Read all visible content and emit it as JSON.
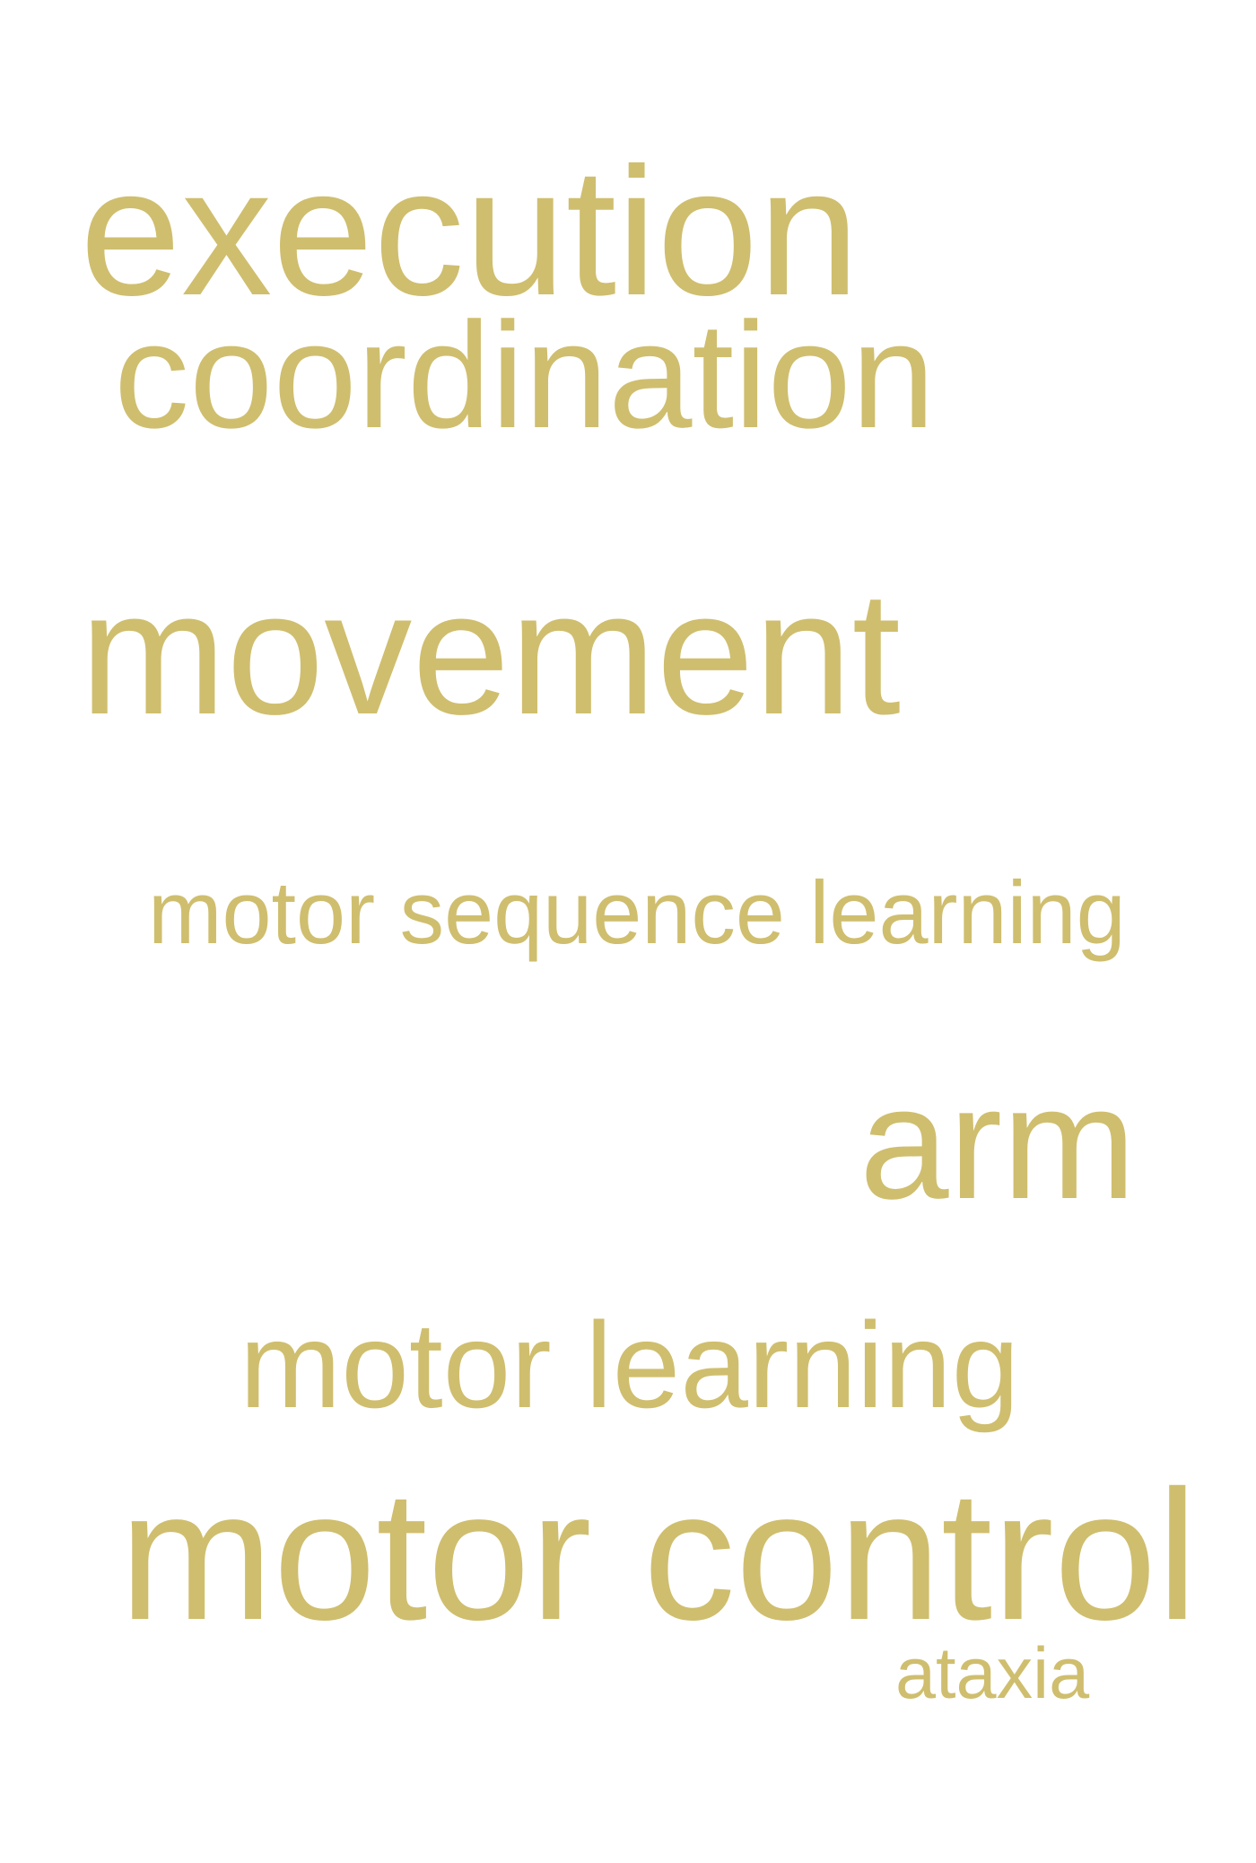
{
  "word_cloud": {
    "color": "#cfbe6e",
    "words": [
      {
        "id": "execution",
        "text": "execution"
      },
      {
        "id": "coordination",
        "text": "coordination"
      },
      {
        "id": "movement",
        "text": "movement"
      },
      {
        "id": "motor_sequence_learning",
        "text": "motor sequence learning"
      },
      {
        "id": "arm",
        "text": "arm"
      },
      {
        "id": "motor_learning",
        "text": "motor learning"
      },
      {
        "id": "motor_control",
        "text": "motor control"
      },
      {
        "id": "ataxia",
        "text": "ataxia"
      }
    ]
  }
}
